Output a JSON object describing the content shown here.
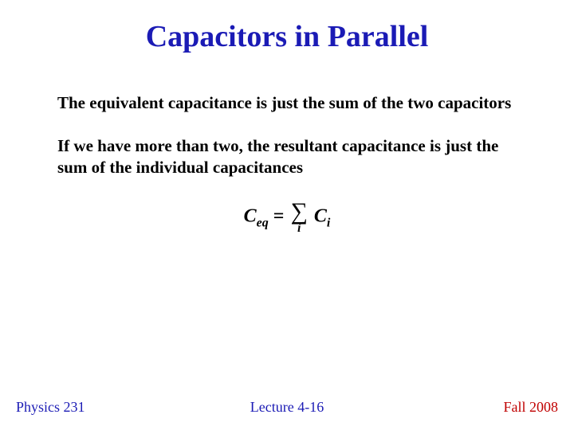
{
  "title": {
    "text": "Capacitors in Parallel",
    "color": "#1b1bb5",
    "fontsize": 38
  },
  "paragraphs": {
    "p1": "The equivalent capacitance is just the sum of the two capacitors",
    "p2": "If we have more than two, the resultant capacitance is just the sum of the individual capacitances",
    "fontsize": 21,
    "color": "#000000"
  },
  "formula": {
    "lhs_var": "C",
    "lhs_sub": "eq",
    "equals": " = ",
    "sigma": "∑",
    "sigma_index": "i",
    "rhs_var": "C",
    "rhs_sub": "i",
    "fontsize": 24,
    "sigma_fontsize": 30,
    "sub_fontsize": 16,
    "color": "#000000"
  },
  "footer": {
    "left": "Physics 231",
    "center": "Lecture 4-16",
    "right": "Fall 2008",
    "fontsize": 18,
    "left_color": "#1b1bb5",
    "center_color": "#1b1bb5",
    "right_color": "#c00000"
  },
  "background_color": "#ffffff"
}
